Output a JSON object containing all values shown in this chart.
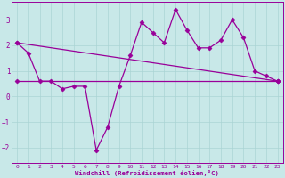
{
  "xlabel": "Windchill (Refroidissement éolien,°C)",
  "x_values": [
    0,
    1,
    2,
    3,
    4,
    5,
    6,
    7,
    8,
    9,
    10,
    11,
    12,
    13,
    14,
    15,
    16,
    17,
    18,
    19,
    20,
    21,
    22,
    23
  ],
  "line_main": [
    2.1,
    1.7,
    0.6,
    0.6,
    0.3,
    0.4,
    0.4,
    -2.1,
    -1.2,
    0.4,
    1.6,
    2.9,
    2.5,
    2.1,
    3.4,
    2.6,
    1.9,
    1.9,
    2.2,
    3.0,
    2.3,
    1.0,
    0.8,
    0.6
  ],
  "line_trend_y": [
    2.1,
    0.6
  ],
  "line_flat_y": 0.6,
  "line_color": "#990099",
  "bg_color": "#c8e8e8",
  "grid_color": "#aad4d4",
  "ylim": [
    -2.6,
    3.7
  ],
  "xlim": [
    -0.5,
    23.5
  ],
  "yticks": [
    -2,
    -1,
    0,
    1,
    2,
    3
  ],
  "xticks": [
    0,
    1,
    2,
    3,
    4,
    5,
    6,
    7,
    8,
    9,
    10,
    11,
    12,
    13,
    14,
    15,
    16,
    17,
    18,
    19,
    20,
    21,
    22,
    23
  ],
  "markersize": 2.5,
  "linewidth": 0.9
}
